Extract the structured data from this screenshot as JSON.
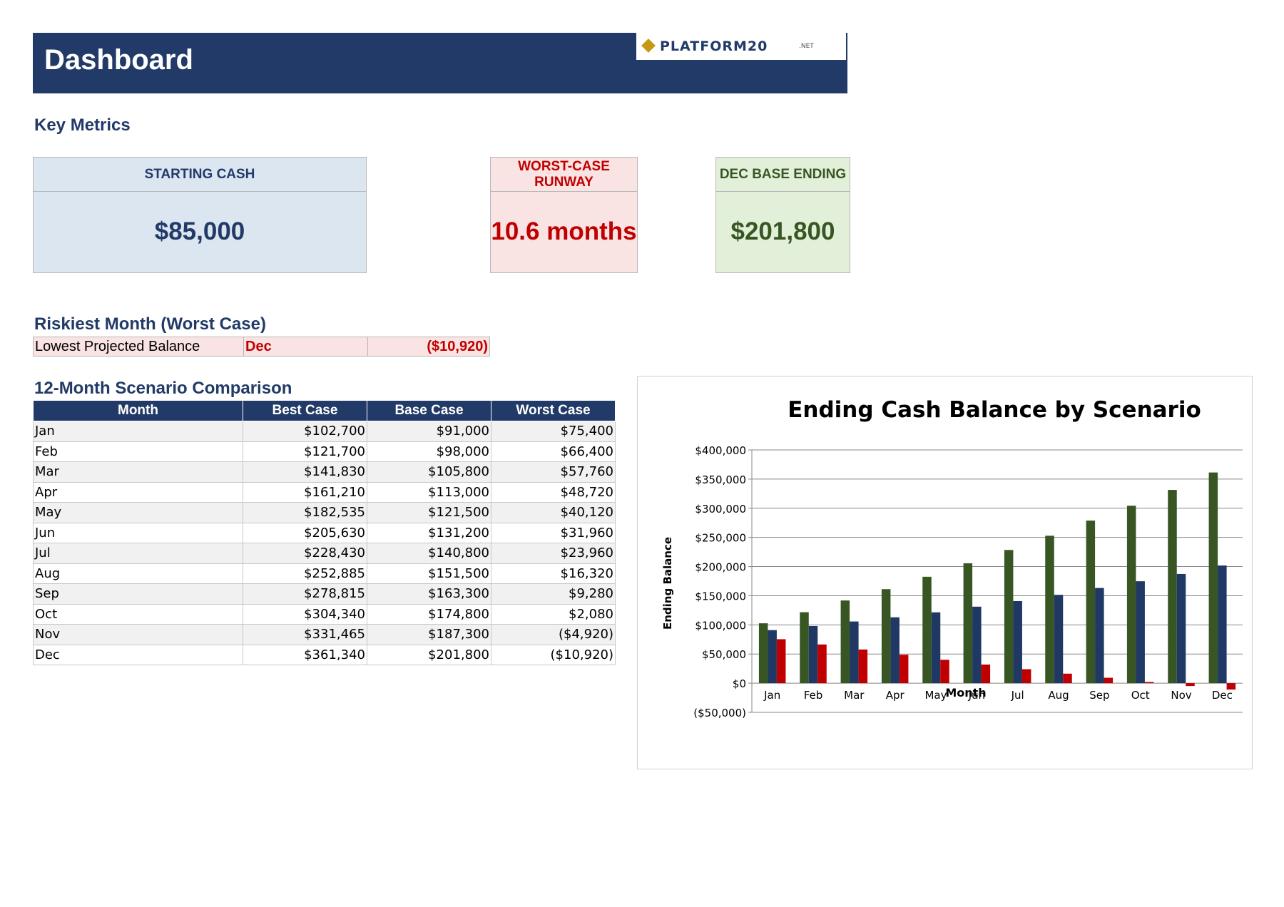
{
  "header": {
    "title": "Dashboard",
    "logo_text": "PLATFORM20",
    "logo_suffix": ".NET"
  },
  "key_metrics": {
    "section_title": "Key Metrics",
    "starting_cash": {
      "label": "STARTING CASH",
      "value": "$85,000"
    },
    "worst_case_runway": {
      "label_line1": "WORST-CASE",
      "label_line2": "RUNWAY",
      "value": "10.6 months"
    },
    "dec_base_ending": {
      "label": "DEC BASE ENDING",
      "value": "$201,800"
    }
  },
  "riskiest_month": {
    "section_title": "Riskiest Month (Worst Case)",
    "label": "Lowest Projected Balance",
    "month": "Dec",
    "value": "($10,920)"
  },
  "comparison": {
    "section_title": "12-Month Scenario Comparison",
    "columns": [
      "Month",
      "Best Case",
      "Base Case",
      "Worst Case"
    ],
    "rows": [
      [
        "Jan",
        "$102,700",
        "$91,000",
        "$75,400"
      ],
      [
        "Feb",
        "$121,700",
        "$98,000",
        "$66,400"
      ],
      [
        "Mar",
        "$141,830",
        "$105,800",
        "$57,760"
      ],
      [
        "Apr",
        "$161,210",
        "$113,000",
        "$48,720"
      ],
      [
        "May",
        "$182,535",
        "$121,500",
        "$40,120"
      ],
      [
        "Jun",
        "$205,630",
        "$131,200",
        "$31,960"
      ],
      [
        "Jul",
        "$228,430",
        "$140,800",
        "$23,960"
      ],
      [
        "Aug",
        "$252,885",
        "$151,500",
        "$16,320"
      ],
      [
        "Sep",
        "$278,815",
        "$163,300",
        "$9,280"
      ],
      [
        "Oct",
        "$304,340",
        "$174,800",
        "$2,080"
      ],
      [
        "Nov",
        "$331,465",
        "$187,300",
        "($4,920)"
      ],
      [
        "Dec",
        "$361,340",
        "$201,800",
        "($10,920)"
      ]
    ]
  },
  "colors": {
    "navy": "#213a67",
    "best": "#375623",
    "base": "#1f3864",
    "worst": "#c00000"
  },
  "chart_data": {
    "type": "bar",
    "title": "Ending Cash Balance by Scenario",
    "xlabel": "Month",
    "ylabel": "Ending Balance",
    "categories": [
      "Jan",
      "Feb",
      "Mar",
      "Apr",
      "May",
      "Jun",
      "Jul",
      "Aug",
      "Sep",
      "Oct",
      "Nov",
      "Dec"
    ],
    "series": [
      {
        "values": [
          102700,
          121700,
          141830,
          161210,
          182535,
          205630,
          228430,
          252885,
          278815,
          304340,
          331465,
          361340
        ],
        "color": "#375623"
      },
      {
        "values": [
          91000,
          98000,
          105800,
          113000,
          121500,
          131200,
          140800,
          151500,
          163300,
          174800,
          187300,
          201800
        ],
        "color": "#1f3864"
      },
      {
        "values": [
          75400,
          66400,
          57760,
          48720,
          40120,
          31960,
          23960,
          16320,
          9280,
          2080,
          -4920,
          -10920
        ],
        "color": "#c00000"
      }
    ],
    "ylim": [
      -50000,
      400000
    ],
    "yticks": [
      -50000,
      0,
      50000,
      100000,
      150000,
      200000,
      250000,
      300000,
      350000,
      400000
    ],
    "ytick_labels": [
      "($50,000)",
      "$0",
      "$50,000",
      "$100,000",
      "$150,000",
      "$200,000",
      "$250,000",
      "$300,000",
      "$350,000",
      "$400,000"
    ],
    "grid": true,
    "legend": "none"
  }
}
